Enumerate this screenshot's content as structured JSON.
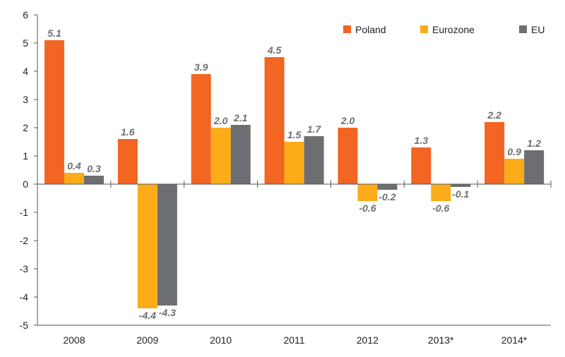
{
  "chart_data": {
    "type": "bar",
    "categories": [
      "2008",
      "2009",
      "2010",
      "2011",
      "2012",
      "2013*",
      "2014*"
    ],
    "series": [
      {
        "name": "Poland",
        "color": "#f26522",
        "values": [
          5.1,
          1.6,
          3.9,
          4.5,
          2.0,
          1.3,
          2.2
        ]
      },
      {
        "name": "Eurozone",
        "color": "#fbac18",
        "values": [
          0.4,
          -4.4,
          2.0,
          1.5,
          -0.6,
          -0.6,
          0.9
        ]
      },
      {
        "name": "EU",
        "color": "#6d6e71",
        "values": [
          0.3,
          -4.3,
          2.1,
          1.7,
          -0.2,
          -0.1,
          1.2
        ]
      }
    ],
    "data_labels": [
      [
        "5.1",
        "1.6",
        "3.9",
        "4.5",
        "2.0",
        "1.3",
        "2.2"
      ],
      [
        "0.4",
        "-4.4",
        "2.0",
        "1.5",
        "-0.6",
        "-0.6",
        "0.9"
      ],
      [
        "0.3",
        "-4.3",
        "2.1",
        "1.7",
        "-0.2",
        "-0.1",
        "1.2"
      ]
    ],
    "y_ticks": [
      "6",
      "5",
      "4",
      "3",
      "2",
      "1",
      "0",
      "-1",
      "-2",
      "-3",
      "-4",
      "-5"
    ],
    "ylim": [
      -5,
      6
    ],
    "grid": false,
    "legend_position": "top-right",
    "title": "",
    "xlabel": "",
    "ylabel": ""
  }
}
